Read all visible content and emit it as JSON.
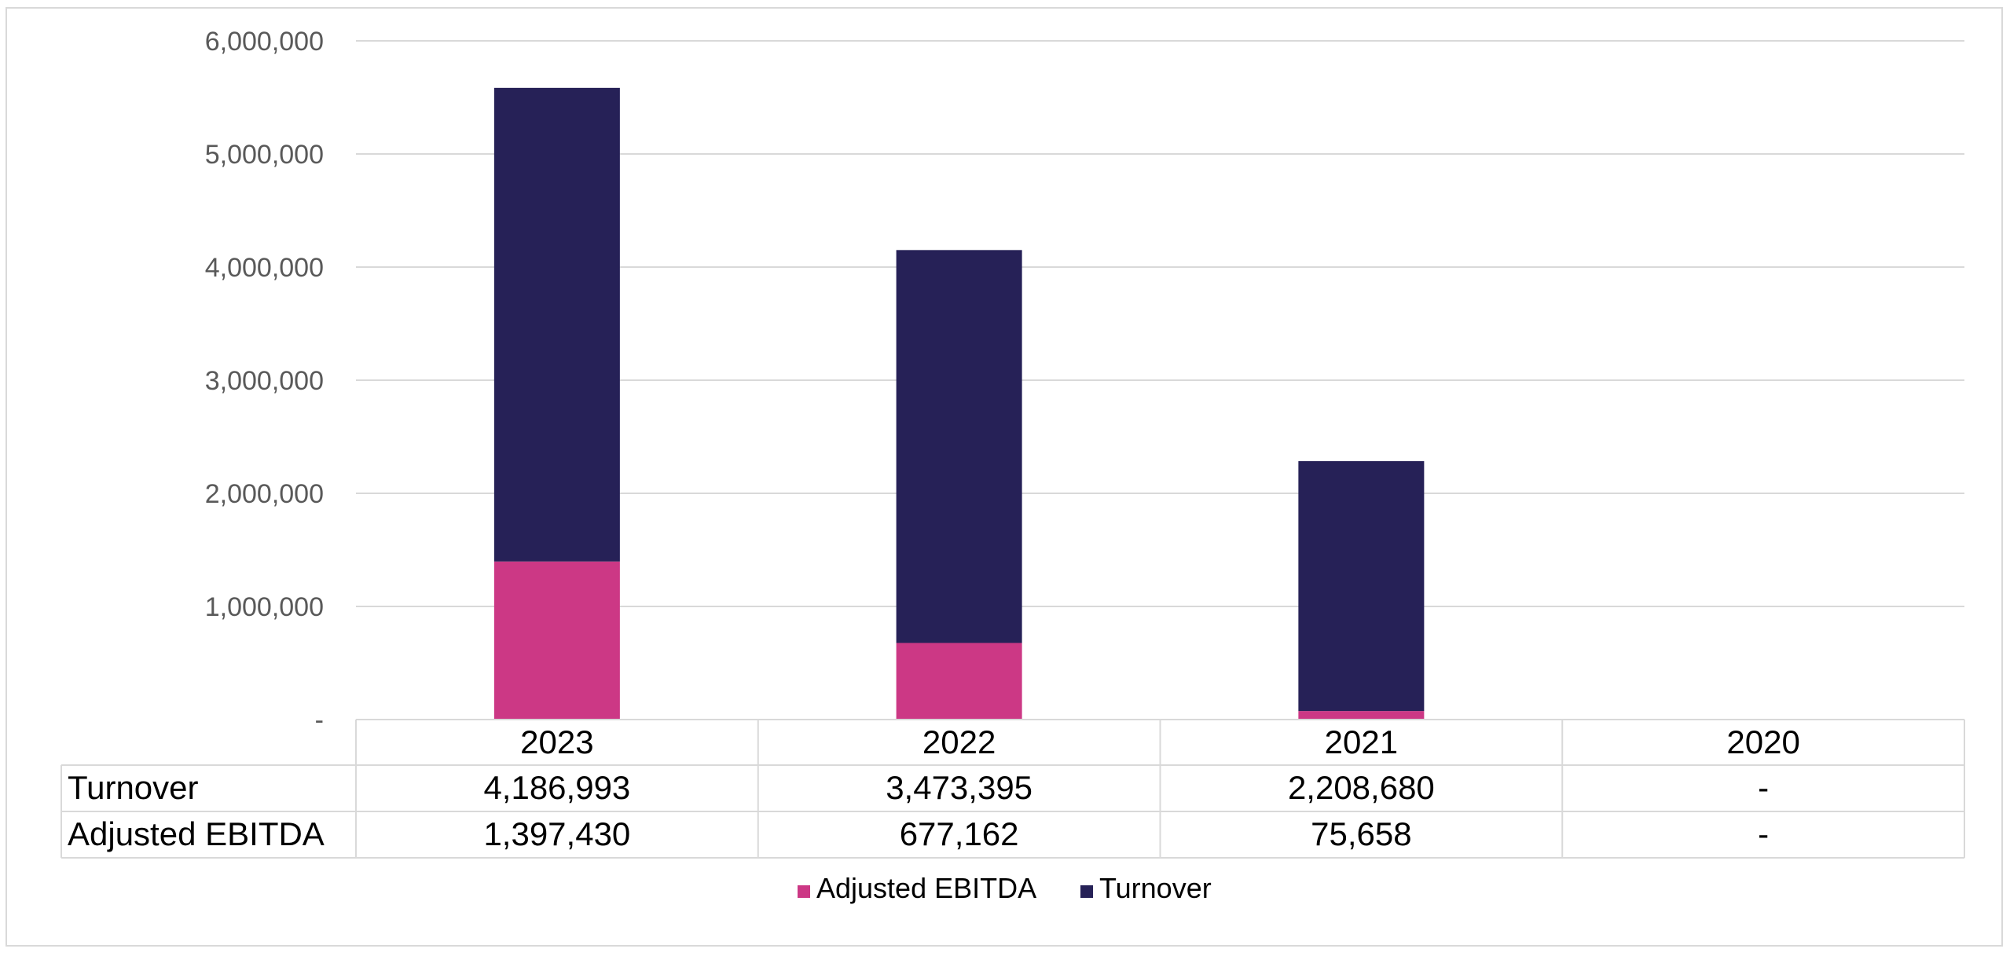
{
  "chart_data": {
    "type": "bar",
    "stacked": true,
    "categories": [
      "2023",
      "2022",
      "2021",
      "2020"
    ],
    "series": [
      {
        "name": "Adjusted EBITDA",
        "values": [
          1397430,
          677162,
          75658,
          0
        ],
        "display": [
          "1,397,430",
          "677,162",
          "75,658",
          "-"
        ],
        "color": "#cc3885"
      },
      {
        "name": "Turnover",
        "values": [
          4186993,
          3473395,
          2208680,
          0
        ],
        "display": [
          "4,186,993",
          "3,473,395",
          "2,208,680",
          "-"
        ],
        "color": "#262157"
      }
    ],
    "table_rows": [
      "Turnover",
      "Adjusted EBITDA"
    ],
    "ylim": [
      0,
      6000000
    ],
    "yticks": [
      0,
      1000000,
      2000000,
      3000000,
      4000000,
      5000000,
      6000000
    ],
    "ytick_labels": [
      "-",
      "1,000,000",
      "2,000,000",
      "3,000,000",
      "4,000,000",
      "5,000,000",
      "6,000,000"
    ],
    "grid": true,
    "legend": {
      "position": "bottom",
      "entries": [
        "Adjusted EBITDA",
        "Turnover"
      ]
    },
    "title": "",
    "xlabel": "",
    "ylabel": ""
  }
}
